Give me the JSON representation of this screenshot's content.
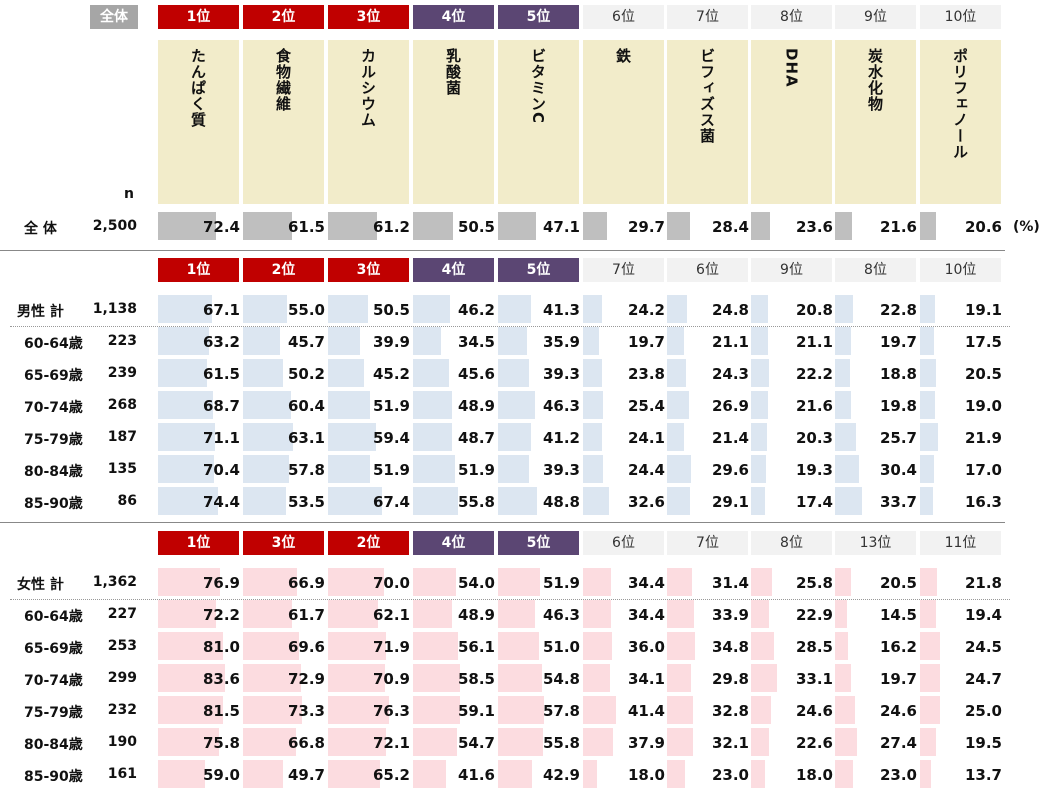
{
  "chart_data": {
    "type": "table",
    "n_label": "n",
    "unit": "(%)",
    "total_label": "全体",
    "columns": [
      "たんぱく質",
      "食物繊維",
      "カルシウム",
      "乳酸菌",
      "ビタミンC",
      "鉄",
      "ビフィズス菌",
      "DHA",
      "炭水化物",
      "ポリフェノール"
    ],
    "groups": [
      {
        "key": "total",
        "ranks": [
          "1位",
          "2位",
          "3位",
          "4位",
          "5位",
          "6位",
          "7位",
          "8位",
          "9位",
          "10位"
        ],
        "rows": [
          {
            "label": "全 体",
            "n": "2,500",
            "values": [
              72.4,
              61.5,
              61.2,
              50.5,
              47.1,
              29.7,
              28.4,
              23.6,
              21.6,
              20.6
            ]
          }
        ]
      },
      {
        "key": "male",
        "ranks": [
          "1位",
          "2位",
          "3位",
          "4位",
          "5位",
          "7位",
          "6位",
          "9位",
          "8位",
          "10位"
        ],
        "rows": [
          {
            "label": "男性 計",
            "n": "1,138",
            "values": [
              67.1,
              55.0,
              50.5,
              46.2,
              41.3,
              24.2,
              24.8,
              20.8,
              22.8,
              19.1
            ]
          },
          {
            "label": "60-64歳",
            "n": "223",
            "values": [
              63.2,
              45.7,
              39.9,
              34.5,
              35.9,
              19.7,
              21.1,
              21.1,
              19.7,
              17.5
            ]
          },
          {
            "label": "65-69歳",
            "n": "239",
            "values": [
              61.5,
              50.2,
              45.2,
              45.6,
              39.3,
              23.8,
              24.3,
              22.2,
              18.8,
              20.5
            ]
          },
          {
            "label": "70-74歳",
            "n": "268",
            "values": [
              68.7,
              60.4,
              51.9,
              48.9,
              46.3,
              25.4,
              26.9,
              21.6,
              19.8,
              19.0
            ]
          },
          {
            "label": "75-79歳",
            "n": "187",
            "values": [
              71.1,
              63.1,
              59.4,
              48.7,
              41.2,
              24.1,
              21.4,
              20.3,
              25.7,
              21.9
            ]
          },
          {
            "label": "80-84歳",
            "n": "135",
            "values": [
              70.4,
              57.8,
              51.9,
              51.9,
              39.3,
              24.4,
              29.6,
              19.3,
              30.4,
              17.0
            ]
          },
          {
            "label": "85-90歳",
            "n": "86",
            "values": [
              74.4,
              53.5,
              67.4,
              55.8,
              48.8,
              32.6,
              29.1,
              17.4,
              33.7,
              16.3
            ]
          }
        ]
      },
      {
        "key": "female",
        "ranks": [
          "1位",
          "3位",
          "2位",
          "4位",
          "5位",
          "6位",
          "7位",
          "8位",
          "13位",
          "11位"
        ],
        "rows": [
          {
            "label": "女性 計",
            "n": "1,362",
            "values": [
              76.9,
              66.9,
              70.0,
              54.0,
              51.9,
              34.4,
              31.4,
              25.8,
              20.5,
              21.8
            ]
          },
          {
            "label": "60-64歳",
            "n": "227",
            "values": [
              72.2,
              61.7,
              62.1,
              48.9,
              46.3,
              34.4,
              33.9,
              22.9,
              14.5,
              19.4
            ]
          },
          {
            "label": "65-69歳",
            "n": "253",
            "values": [
              81.0,
              69.6,
              71.9,
              56.1,
              51.0,
              36.0,
              34.8,
              28.5,
              16.2,
              24.5
            ]
          },
          {
            "label": "70-74歳",
            "n": "299",
            "values": [
              83.6,
              72.9,
              70.9,
              58.5,
              54.8,
              34.1,
              29.8,
              33.1,
              19.7,
              24.7
            ]
          },
          {
            "label": "75-79歳",
            "n": "232",
            "values": [
              81.5,
              73.3,
              76.3,
              59.1,
              57.8,
              41.4,
              32.8,
              24.6,
              24.6,
              25.0
            ]
          },
          {
            "label": "80-84歳",
            "n": "190",
            "values": [
              75.8,
              66.8,
              72.1,
              54.7,
              55.8,
              37.9,
              32.1,
              22.6,
              27.4,
              19.5
            ]
          },
          {
            "label": "85-90歳",
            "n": "161",
            "values": [
              59.0,
              49.7,
              65.2,
              41.6,
              42.9,
              18.0,
              23.0,
              18.0,
              23.0,
              13.7
            ]
          }
        ]
      }
    ],
    "colors": {
      "rank_top3": "#c00000",
      "rank_4_5": "#5b4673",
      "rank_other": "#f2f2f2",
      "header_bg": "#f2ecca",
      "bar_total": "#bfbfbf",
      "bar_male": "#dce6f1",
      "bar_female": "#fcdce0"
    }
  }
}
